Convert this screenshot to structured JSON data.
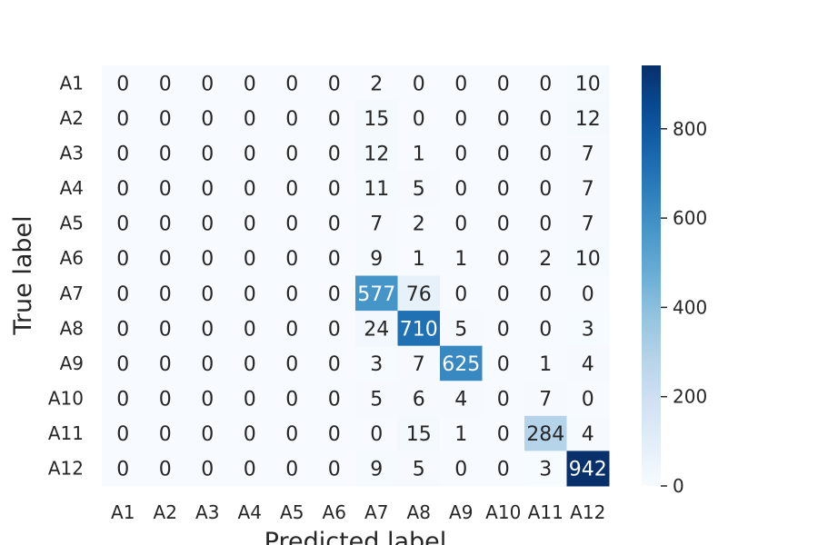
{
  "chart_data": {
    "type": "heatmap",
    "xlabel": "Predicted label",
    "ylabel": "True label",
    "x_categories": [
      "A1",
      "A2",
      "A3",
      "A4",
      "A5",
      "A6",
      "A7",
      "A8",
      "A9",
      "A10",
      "A11",
      "A12"
    ],
    "y_categories": [
      "A1",
      "A2",
      "A3",
      "A4",
      "A5",
      "A6",
      "A7",
      "A8",
      "A9",
      "A10",
      "A11",
      "A12"
    ],
    "matrix": [
      [
        0,
        0,
        0,
        0,
        0,
        0,
        2,
        0,
        0,
        0,
        0,
        10
      ],
      [
        0,
        0,
        0,
        0,
        0,
        0,
        15,
        0,
        0,
        0,
        0,
        12
      ],
      [
        0,
        0,
        0,
        0,
        0,
        0,
        12,
        1,
        0,
        0,
        0,
        7
      ],
      [
        0,
        0,
        0,
        0,
        0,
        0,
        11,
        5,
        0,
        0,
        0,
        7
      ],
      [
        0,
        0,
        0,
        0,
        0,
        0,
        7,
        2,
        0,
        0,
        0,
        7
      ],
      [
        0,
        0,
        0,
        0,
        0,
        0,
        9,
        1,
        1,
        0,
        2,
        10
      ],
      [
        0,
        0,
        0,
        0,
        0,
        0,
        577,
        76,
        0,
        0,
        0,
        0
      ],
      [
        0,
        0,
        0,
        0,
        0,
        0,
        24,
        710,
        5,
        0,
        0,
        3
      ],
      [
        0,
        0,
        0,
        0,
        0,
        0,
        3,
        7,
        625,
        0,
        1,
        4
      ],
      [
        0,
        0,
        0,
        0,
        0,
        0,
        5,
        6,
        4,
        0,
        7,
        0
      ],
      [
        0,
        0,
        0,
        0,
        0,
        0,
        0,
        15,
        1,
        0,
        284,
        4
      ],
      [
        0,
        0,
        0,
        0,
        0,
        0,
        9,
        5,
        0,
        0,
        3,
        942
      ]
    ],
    "colorbar": {
      "colormap": "Blues",
      "range": [
        0,
        942
      ],
      "ticks": [
        0,
        200,
        400,
        600,
        800
      ]
    }
  }
}
